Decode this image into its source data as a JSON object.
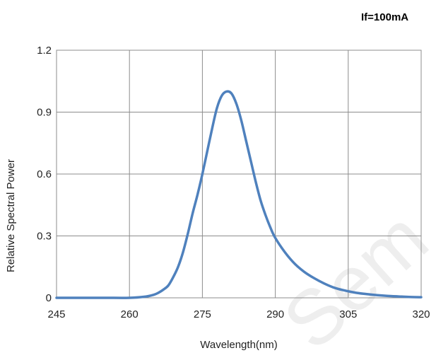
{
  "chart_data": {
    "type": "line",
    "title": "",
    "annotation": "If=100mA",
    "xlabel": "Wavelength(nm)",
    "ylabel": "Relative Spectral Power",
    "xlim": [
      245,
      320
    ],
    "ylim": [
      0,
      1.2
    ],
    "x_ticks": [
      245,
      260,
      275,
      290,
      305,
      320
    ],
    "x_tick_labels": [
      "245",
      "260",
      "275",
      "290",
      "305",
      "320"
    ],
    "y_ticks": [
      0,
      0.3,
      0.6,
      0.9,
      1.2
    ],
    "y_tick_labels": [
      "0",
      "0.3",
      "0.6",
      "0.9",
      "1.2"
    ],
    "grid": true,
    "line_color": "#4f81bd",
    "grid_color": "#8c8c8c",
    "series": [
      {
        "x": [
          245,
          250,
          255,
          260,
          263,
          265,
          266,
          267,
          268,
          269,
          270,
          271,
          272,
          273,
          274,
          275,
          276,
          277,
          278,
          279,
          280,
          281,
          282,
          283,
          284,
          285,
          286,
          287,
          288,
          289,
          290,
          292,
          294,
          296,
          298,
          300,
          302,
          304,
          306,
          308,
          310,
          312,
          314,
          316,
          318,
          320
        ],
        "y": [
          0,
          0,
          0,
          0,
          0.005,
          0.015,
          0.025,
          0.04,
          0.06,
          0.1,
          0.15,
          0.22,
          0.31,
          0.41,
          0.5,
          0.6,
          0.71,
          0.82,
          0.92,
          0.98,
          1.0,
          0.99,
          0.94,
          0.86,
          0.76,
          0.66,
          0.56,
          0.47,
          0.4,
          0.34,
          0.29,
          0.22,
          0.165,
          0.125,
          0.095,
          0.07,
          0.05,
          0.037,
          0.027,
          0.02,
          0.015,
          0.011,
          0.008,
          0.006,
          0.004,
          0.003
        ]
      }
    ]
  },
  "watermark": "Sem"
}
